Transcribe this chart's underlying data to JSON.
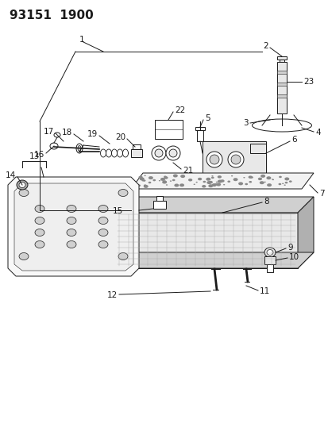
{
  "title": "93151  1900",
  "bg_color": "#ffffff",
  "line_color": "#1a1a1a",
  "fill_light": "#e8e8e8",
  "fill_mid": "#d0d0d0",
  "fill_dark": "#b0b0b0",
  "title_fontsize": 11,
  "label_fontsize": 7.5,
  "fig_width": 4.14,
  "fig_height": 5.33,
  "dpi": 100,
  "lw": 0.7
}
